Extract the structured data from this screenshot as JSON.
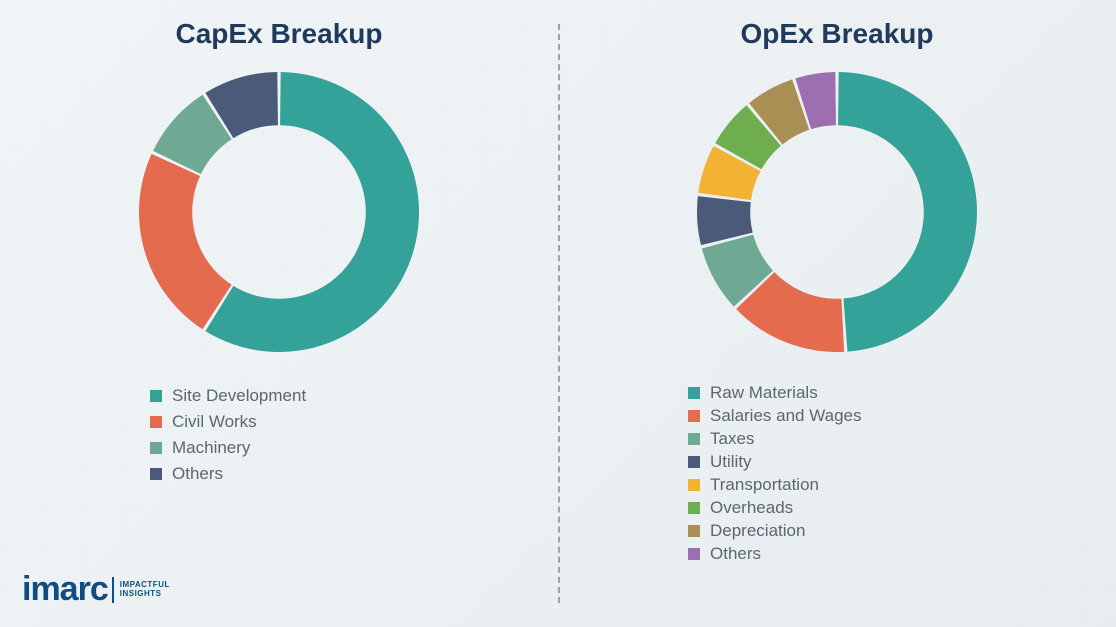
{
  "background_color": "#f4f6f7",
  "title_color": "#1f3a5a",
  "legend_text_color": "#5b6770",
  "divider_color": "#9aa4ad",
  "capex": {
    "title": "CapEx Breakup",
    "type": "donut",
    "inner_radius_pct": 62,
    "start_angle_deg": 0,
    "segments": [
      {
        "label": "Site Development",
        "value": 59,
        "color": "#34a298"
      },
      {
        "label": "Civil Works",
        "value": 23,
        "color": "#e56b4e"
      },
      {
        "label": "Machinery",
        "value": 9,
        "color": "#6fa893"
      },
      {
        "label": "Others",
        "value": 9,
        "color": "#4a5a78"
      }
    ]
  },
  "opex": {
    "title": "OpEx Breakup",
    "type": "donut",
    "inner_radius_pct": 62,
    "start_angle_deg": 0,
    "segments": [
      {
        "label": "Raw Materials",
        "value": 49,
        "color": "#34a298"
      },
      {
        "label": "Salaries and Wages",
        "value": 14,
        "color": "#e56b4e"
      },
      {
        "label": "Taxes",
        "value": 8,
        "color": "#6fa893"
      },
      {
        "label": "Utility",
        "value": 6,
        "color": "#4a5a78"
      },
      {
        "label": "Transportation",
        "value": 6,
        "color": "#f2b233"
      },
      {
        "label": "Overheads",
        "value": 6,
        "color": "#6fae4f"
      },
      {
        "label": "Depreciation",
        "value": 6,
        "color": "#a88f54"
      },
      {
        "label": "Others",
        "value": 5,
        "color": "#9d6fb0"
      }
    ]
  },
  "logo": {
    "brand": "imarc",
    "tagline_line1": "IMPACTFUL",
    "tagline_line2": "INSIGHTS",
    "color": "#0f4c81"
  }
}
